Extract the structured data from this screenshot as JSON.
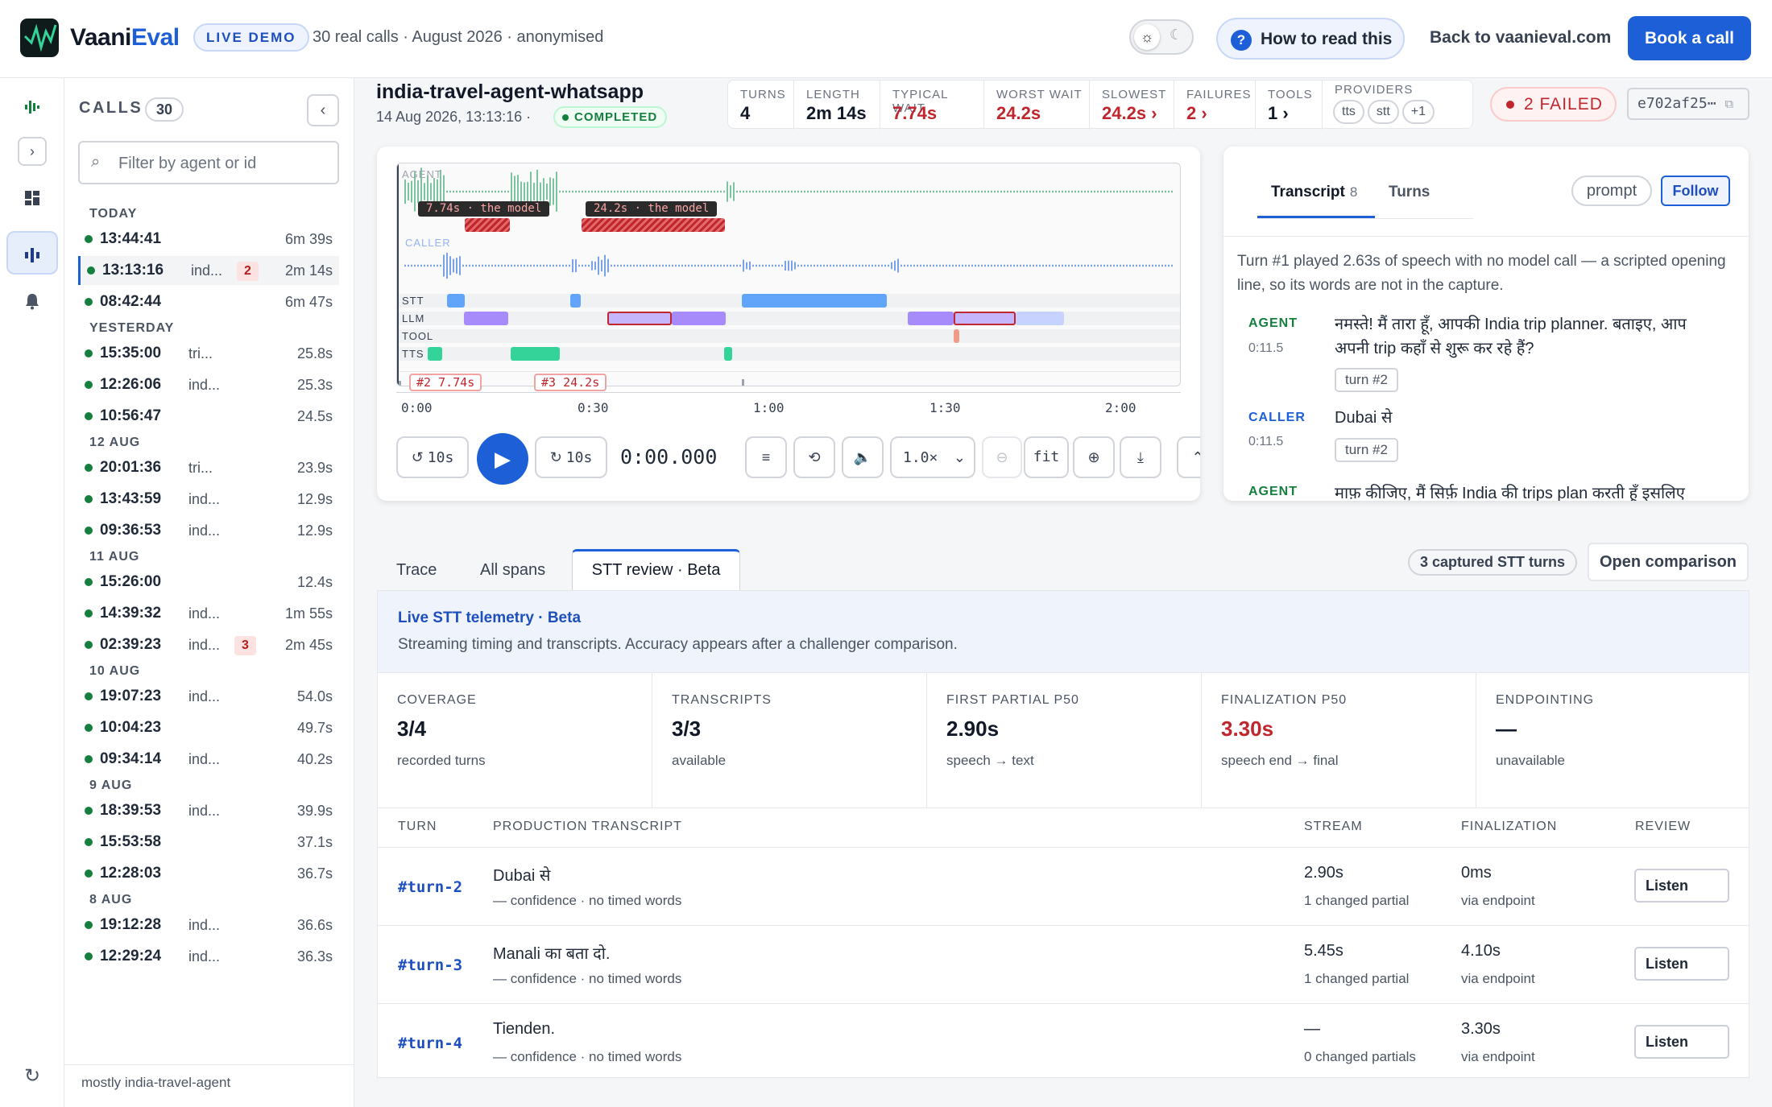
{
  "header": {
    "brand_prefix": "Vaani",
    "brand_accent": "Eval",
    "live_demo": "LIVE DEMO",
    "subtitle": "30 real calls · August 2026 · anonymised",
    "how_to_read": "How to read this",
    "back_link": "Back to vaanieval.com",
    "book_call": "Book a call"
  },
  "calls": {
    "heading": "CALLS",
    "count": "30",
    "filter_placeholder": "Filter by agent or id",
    "groups": [
      {
        "label": "TODAY",
        "items": [
          {
            "time": "13:44:41",
            "agent": "",
            "fail": "",
            "dur": "6m 39s"
          },
          {
            "time": "13:13:16",
            "agent": "ind...",
            "fail": "2",
            "dur": "2m 14s"
          },
          {
            "time": "08:42:44",
            "agent": "",
            "fail": "",
            "dur": "6m 47s"
          }
        ]
      },
      {
        "label": "YESTERDAY",
        "items": [
          {
            "time": "15:35:00",
            "agent": "tri...",
            "fail": "",
            "dur": "25.8s"
          },
          {
            "time": "12:26:06",
            "agent": "ind...",
            "fail": "",
            "dur": "25.3s"
          },
          {
            "time": "10:56:47",
            "agent": "",
            "fail": "",
            "dur": "24.5s"
          }
        ]
      },
      {
        "label": "12 AUG",
        "items": [
          {
            "time": "20:01:36",
            "agent": "tri...",
            "fail": "",
            "dur": "23.9s"
          },
          {
            "time": "13:43:59",
            "agent": "ind...",
            "fail": "",
            "dur": "12.9s"
          },
          {
            "time": "09:36:53",
            "agent": "ind...",
            "fail": "",
            "dur": "12.9s"
          }
        ]
      },
      {
        "label": "11 AUG",
        "items": [
          {
            "time": "15:26:00",
            "agent": "",
            "fail": "",
            "dur": "12.4s"
          },
          {
            "time": "14:39:32",
            "agent": "ind...",
            "fail": "",
            "dur": "1m 55s"
          },
          {
            "time": "02:39:23",
            "agent": "ind...",
            "fail": "3",
            "dur": "2m 45s"
          }
        ]
      },
      {
        "label": "10 AUG",
        "items": [
          {
            "time": "19:07:23",
            "agent": "ind...",
            "fail": "",
            "dur": "54.0s"
          },
          {
            "time": "10:04:23",
            "agent": "",
            "fail": "",
            "dur": "49.7s"
          },
          {
            "time": "09:34:14",
            "agent": "ind...",
            "fail": "",
            "dur": "40.2s"
          }
        ]
      },
      {
        "label": "9 AUG",
        "items": [
          {
            "time": "18:39:53",
            "agent": "ind...",
            "fail": "",
            "dur": "39.9s"
          },
          {
            "time": "15:53:58",
            "agent": "",
            "fail": "",
            "dur": "37.1s"
          },
          {
            "time": "12:28:03",
            "agent": "",
            "fail": "",
            "dur": "36.7s"
          }
        ]
      },
      {
        "label": "8 AUG",
        "items": [
          {
            "time": "19:12:28",
            "agent": "ind...",
            "fail": "",
            "dur": "36.6s"
          },
          {
            "time": "12:29:24",
            "agent": "ind...",
            "fail": "",
            "dur": "36.3s"
          }
        ]
      }
    ],
    "footer": "mostly india-travel-agent"
  },
  "call": {
    "title": "india-travel-agent-whatsapp",
    "date": "14 Aug 2026, 13:13:16",
    "status": "COMPLETED",
    "failed": "2 FAILED",
    "hash": "e702af25⋯",
    "stats": {
      "turns_label": "TURNS",
      "turns": "4",
      "length_label": "LENGTH",
      "length": "2m 14s",
      "typical_label": "TYPICAL WAIT",
      "typical": "7.74s",
      "worst_label": "WORST WAIT",
      "worst": "24.2s",
      "slowest_label": "SLOWEST",
      "slowest": "24.2s ›",
      "failures_label": "FAILURES",
      "failures": "2 ›",
      "tools_label": "TOOLS",
      "tools": "1 ›",
      "providers_label": "PROVIDERS",
      "providers": [
        "tts",
        "stt",
        "+1"
      ]
    }
  },
  "player": {
    "track_agent": "AGENT",
    "track_caller": "CALLER",
    "lanes": [
      "STT",
      "LLM",
      "TOOL",
      "TTS"
    ],
    "annotation_1": "7.74s · the model",
    "annotation_2": "24.2s · the model",
    "marker_1": "#2 7.74s",
    "marker_2": "#3 24.2s",
    "ticks": [
      "0:00",
      "0:30",
      "1:00",
      "1:30",
      "2:00"
    ],
    "back_label": "10s",
    "fwd_label": "10s",
    "timecode": "0:00.000",
    "speed": "1.0×",
    "fit": "fit"
  },
  "transcript": {
    "tab_transcript": "Transcript",
    "tab_count": "8",
    "tab_turns": "Turns",
    "prompt": "prompt",
    "follow": "Follow",
    "note": "Turn #1 played 2.63s of speech with no model call — a scripted opening line, so its words are not in the capture.",
    "entries": [
      {
        "speaker": "AGENT",
        "time": "0:11.5",
        "text": "नमस्ते! मैं तारा हूँ, आपकी India trip planner. बताइए, आप अपनी trip कहाँ से शुरू कर रहे हैं?",
        "turn": "turn #2"
      },
      {
        "speaker": "CALLER",
        "time": "0:11.5",
        "text": "Dubai से",
        "turn": "turn #2"
      },
      {
        "speaker": "AGENT",
        "time": "",
        "text": "माफ़ कीजिए, मैं सिर्फ़ India की trips plan करती हूँ इसलिए",
        "turn": ""
      }
    ]
  },
  "tabs": {
    "trace": "Trace",
    "spans": "All spans",
    "stt": "STT review · Beta",
    "captured": "3 captured STT turns",
    "open_comparison": "Open comparison"
  },
  "stt": {
    "title": "Live STT telemetry · Beta",
    "subtitle": "Streaming timing and transcripts. Accuracy appears after a challenger comparison.",
    "metrics": [
      {
        "label": "COVERAGE",
        "value": "3/4",
        "sub": "recorded turns"
      },
      {
        "label": "TRANSCRIPTS",
        "value": "3/3",
        "sub": "available"
      },
      {
        "label": "FIRST PARTIAL P50",
        "value": "2.90s",
        "sub": "speech → text"
      },
      {
        "label": "FINALIZATION P50",
        "value": "3.30s",
        "sub": "speech end → final"
      },
      {
        "label": "ENDPOINTING",
        "value": "—",
        "sub": "unavailable"
      }
    ],
    "columns": [
      "TURN",
      "PRODUCTION TRANSCRIPT",
      "STREAM",
      "FINALIZATION",
      "REVIEW"
    ],
    "rows": [
      {
        "turn": "#turn-2",
        "text": "Dubai से",
        "conf": "— confidence · no timed words",
        "stream": "2.90s",
        "stream_sub": "1 changed partial",
        "final": "0ms",
        "final_sub": "via endpoint",
        "action": "Listen"
      },
      {
        "turn": "#turn-3",
        "text": "Manali का बता दो.",
        "conf": "— confidence · no timed words",
        "stream": "5.45s",
        "stream_sub": "1 changed partial",
        "final": "4.10s",
        "final_sub": "via endpoint",
        "action": "Listen"
      },
      {
        "turn": "#turn-4",
        "text": "Tienden.",
        "conf": "— confidence · no timed words",
        "stream": "—",
        "stream_sub": "0 changed partials",
        "final": "3.30s",
        "final_sub": "via endpoint",
        "action": "Listen"
      }
    ]
  },
  "colors": {
    "accent": "#1d5fd6",
    "fail": "#c0262d",
    "ok": "#15803d",
    "stt": "#60a5fa",
    "llm": "#a78bfa",
    "tts": "#34d399"
  }
}
